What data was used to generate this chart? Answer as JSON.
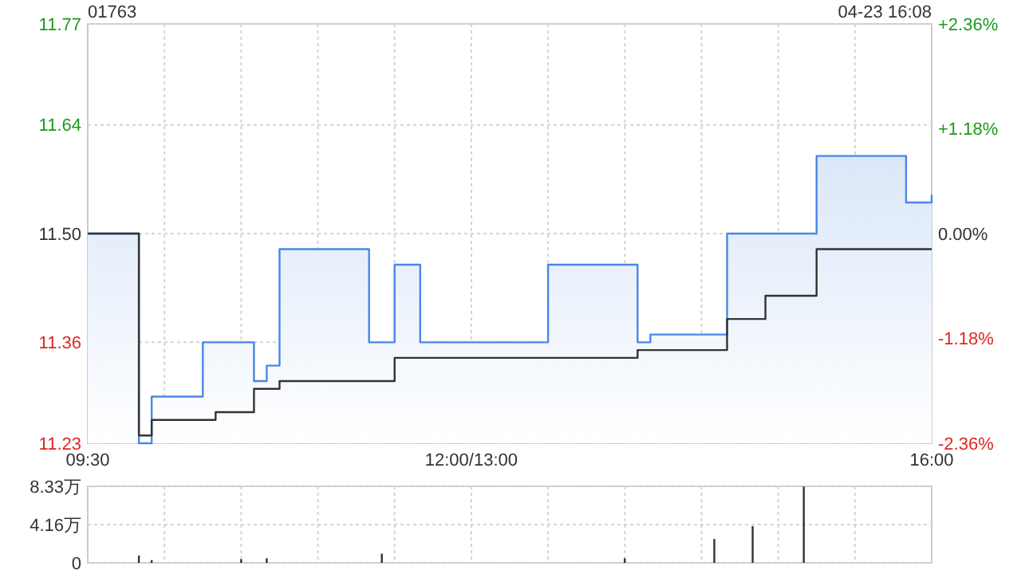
{
  "chart_data": [
    {
      "type": "step",
      "title": "01763",
      "annotations": [
        "04-23 16:08"
      ],
      "grid": true,
      "categories": [
        "09:30",
        null,
        null,
        null,
        null,
        null,
        null,
        null,
        null,
        null,
        null,
        null,
        null,
        null,
        null,
        null,
        null,
        null,
        null,
        null,
        null,
        null,
        null,
        null,
        null,
        null,
        null,
        null,
        null,
        null,
        "12:00/13:00",
        null,
        null,
        null,
        null,
        null,
        null,
        null,
        null,
        null,
        null,
        null,
        null,
        null,
        null,
        null,
        null,
        null,
        null,
        null,
        null,
        null,
        null,
        null,
        null,
        null,
        null,
        null,
        null,
        null,
        null,
        null,
        null,
        null,
        null,
        null,
        "16:00"
      ],
      "ylim": [
        11.23,
        11.77
      ],
      "yticks": [
        11.23,
        11.36,
        {
          "value": 11.5,
          "label": "11.50"
        },
        11.64,
        11.77
      ],
      "y2lim": [
        -2.36,
        2.36
      ],
      "y2ticks": [
        {
          "value": -2.36,
          "label": "-2.36%"
        },
        {
          "value": -1.18,
          "label": "-1.18%"
        },
        {
          "value": 0,
          "label": "0.00%"
        },
        {
          "value": 1.18,
          "label": "+1.18%"
        },
        {
          "value": 2.36,
          "label": "+2.36%"
        }
      ],
      "series": [
        {
          "type": "area",
          "color": "#4a86e8",
          "values": [
            11.5,
            11.5,
            11.5,
            11.5,
            11.23,
            11.29,
            11.29,
            11.29,
            11.29,
            11.36,
            11.36,
            11.36,
            11.36,
            11.31,
            11.33,
            11.48,
            11.48,
            11.48,
            11.48,
            11.48,
            11.48,
            11.48,
            11.36,
            11.36,
            11.46,
            11.46,
            11.36,
            11.36,
            11.36,
            11.36,
            11.36,
            11.36,
            11.36,
            11.36,
            11.36,
            11.36,
            11.46,
            11.46,
            11.46,
            11.46,
            11.46,
            11.46,
            11.46,
            11.36,
            11.37,
            11.37,
            11.37,
            11.37,
            11.37,
            11.37,
            11.5,
            11.5,
            11.5,
            11.5,
            11.5,
            11.5,
            11.5,
            11.6,
            11.6,
            11.6,
            11.6,
            11.6,
            11.6,
            11.6,
            11.54,
            11.54,
            11.55
          ]
        },
        {
          "color": "#333333",
          "values": [
            11.5,
            11.5,
            11.5,
            11.5,
            11.24,
            11.26,
            11.26,
            11.26,
            11.26,
            11.26,
            11.27,
            11.27,
            11.27,
            11.3,
            11.3,
            11.31,
            11.31,
            11.31,
            11.31,
            11.31,
            11.31,
            11.31,
            11.31,
            11.31,
            11.34,
            11.34,
            11.34,
            11.34,
            11.34,
            11.34,
            11.34,
            11.34,
            11.34,
            11.34,
            11.34,
            11.34,
            11.34,
            11.34,
            11.34,
            11.34,
            11.34,
            11.34,
            11.34,
            11.35,
            11.35,
            11.35,
            11.35,
            11.35,
            11.35,
            11.35,
            11.39,
            11.39,
            11.39,
            11.42,
            11.42,
            11.42,
            11.42,
            11.48,
            11.48,
            11.48,
            11.48,
            11.48,
            11.48,
            11.48,
            11.48,
            11.48,
            11.48
          ]
        }
      ]
    },
    {
      "type": "bar",
      "grid": true,
      "tick_labels": "y",
      "categories": [
        null,
        null,
        null,
        null,
        null,
        null,
        null,
        null,
        null,
        null,
        null,
        null,
        null,
        null,
        null,
        null,
        null,
        null,
        null,
        null,
        null,
        null,
        null,
        null,
        null,
        null,
        null,
        null,
        null,
        null,
        null,
        null,
        null,
        null,
        null,
        null,
        null,
        null,
        null,
        null,
        null,
        null,
        null,
        null,
        null,
        null,
        null,
        null,
        null,
        null,
        null,
        null,
        null,
        null,
        null,
        null,
        null,
        null,
        null,
        null,
        null,
        null,
        null,
        null,
        null,
        null,
        null
      ],
      "ylim": [
        0,
        8.33
      ],
      "yticks": [
        0,
        {
          "value": 4.16,
          "label": "4.16万"
        },
        {
          "value": 8.33,
          "label": "8.33万"
        }
      ],
      "values": [
        0,
        0,
        0,
        0,
        0.8,
        0.3,
        0,
        0,
        0,
        0,
        0,
        0,
        0.4,
        0,
        0.5,
        0,
        0,
        0,
        0,
        0,
        0,
        0,
        0,
        1.0,
        0,
        0,
        0,
        0,
        0,
        0,
        0,
        0,
        0,
        0,
        0,
        0,
        0,
        0,
        0,
        0,
        0,
        0,
        0.5,
        0,
        0,
        0,
        0,
        0,
        0,
        2.6,
        0,
        0,
        4.0,
        0,
        0,
        0,
        8.3,
        0,
        0,
        0,
        0,
        0,
        0,
        0,
        0,
        0,
        0
      ],
      "color": "#333333"
    }
  ]
}
